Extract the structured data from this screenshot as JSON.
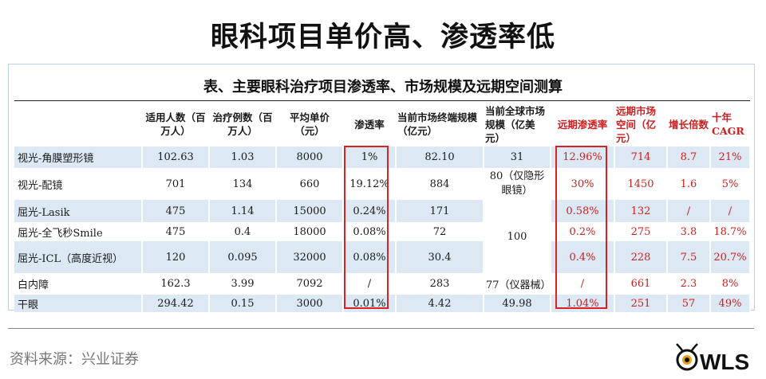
{
  "slide": {
    "title": "眼科项目单价高、渗透率低"
  },
  "table": {
    "caption": "表、主要眼科治疗项目渗透率、市场规模及远期空间测算",
    "headers": [
      "",
      "适用人数（百万人）",
      "治疗例数（百万人）",
      "平均单价（元）",
      "渗透率",
      "当前市场终端规模（亿元）",
      "当前全球市场规模（亿美元）",
      "远期渗透率",
      "远期市场空间（亿元）",
      "增长倍数",
      "十年 CAGR"
    ],
    "rows": [
      {
        "name": "视光-角膜塑形镜",
        "users": "102.63",
        "cases": "1.03",
        "price": "8000",
        "penetration": "1%",
        "market": "82.10",
        "global": "31",
        "future_pen": "12.96%",
        "future_space": "714",
        "multiple": "8.7",
        "cagr": "21%"
      },
      {
        "name": "视光-配镜",
        "users": "701",
        "cases": "134",
        "price": "660",
        "penetration": "19.12%",
        "market": "884",
        "global": "80（仅隐形眼镜）",
        "future_pen": "30%",
        "future_space": "1450",
        "multiple": "1.6",
        "cagr": "5%"
      },
      {
        "name": "屈光-Lasik",
        "users": "475",
        "cases": "1.14",
        "price": "15000",
        "penetration": "0.24%",
        "market": "171",
        "global": "",
        "future_pen": "0.58%",
        "future_space": "132",
        "multiple": "/",
        "cagr": "/"
      },
      {
        "name": "屈光-全飞秒Smile",
        "users": "475",
        "cases": "0.4",
        "price": "18000",
        "penetration": "0.08%",
        "market": "72",
        "global": "100",
        "future_pen": "0.2%",
        "future_space": "275",
        "multiple": "3.8",
        "cagr": "18.7%"
      },
      {
        "name": "屈光-ICL（高度近视）",
        "users": "120",
        "cases": "0.095",
        "price": "32000",
        "penetration": "0.08%",
        "market": "30.4",
        "global": "",
        "future_pen": "0.4%",
        "future_space": "228",
        "multiple": "7.5",
        "cagr": "20.7%"
      },
      {
        "name": "白内障",
        "users": "162.3",
        "cases": "3.99",
        "price": "7092",
        "penetration": "/",
        "market": "283",
        "global": "77（仪器械）",
        "future_pen": "/",
        "future_space": "661",
        "multiple": "2.3",
        "cagr": "8%"
      },
      {
        "name": "干眼",
        "users": "294.42",
        "cases": "0.15",
        "price": "3000",
        "penetration": "0.01%",
        "market": "4.42",
        "global": "49.98",
        "future_pen": "1.04%",
        "future_space": "251",
        "multiple": "57",
        "cagr": "49%"
      }
    ]
  },
  "footer": {
    "source": "资料来源：兴业证券",
    "logo_text": "WLS"
  },
  "colors": {
    "row_shade": "#dce8f3",
    "highlight": "#d62424",
    "red_text": "#cc1f1f"
  }
}
